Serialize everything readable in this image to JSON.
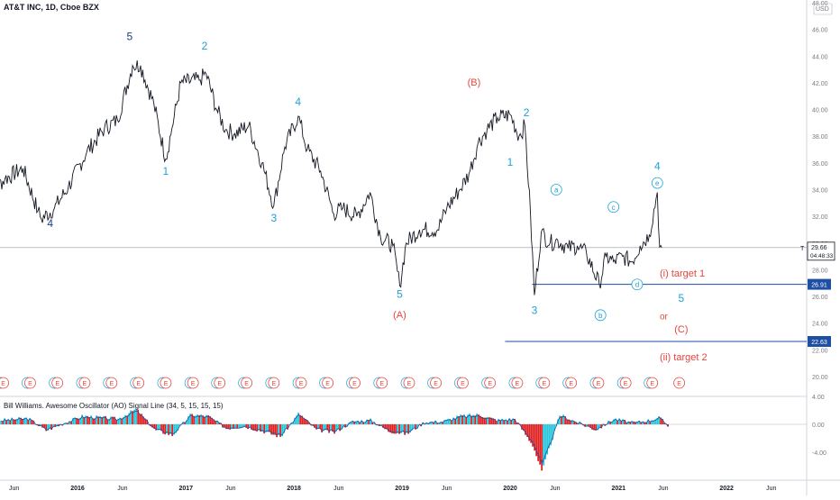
{
  "header": {
    "symbol_title": "AT&T INC, 1D, Cboe BZX",
    "currency": "USD"
  },
  "indicator": {
    "title": "Bill Williams. Awesome Oscillator (AO) Signal Line (34, 5, 15, 15, 15)"
  },
  "price_scale": {
    "ticks": [
      "48.00",
      "46.00",
      "44.00",
      "42.00",
      "40.00",
      "38.00",
      "36.00",
      "34.00",
      "32.00",
      "30.00",
      "28.00",
      "26.00",
      "24.00",
      "22.00",
      "20.00"
    ],
    "last_price": "29.66",
    "countdown": "04:48:33",
    "line_symbol": "T",
    "target1_value": "26.91",
    "target2_value": "22.63"
  },
  "ao_scale": {
    "ticks": [
      "4.00",
      "0.00",
      "-4.00"
    ]
  },
  "time_axis": {
    "labels": [
      "Jun",
      "2016",
      "Jun",
      "2017",
      "Jun",
      "2018",
      "Jun",
      "2019",
      "Jun",
      "2020",
      "Jun",
      "2021",
      "Jun",
      "2022",
      "Jun"
    ]
  },
  "annotations": {
    "target1": "(i) target 1",
    "target2": "(ii) target 2",
    "or": "or",
    "waves": [
      {
        "text": "4",
        "color": "#1f3c88"
      },
      {
        "text": "5",
        "color": "#1f3c88"
      },
      {
        "text": "1",
        "color": "#1ca3d6"
      },
      {
        "text": "2",
        "color": "#1ca3d6"
      },
      {
        "text": "3",
        "color": "#1ca3d6"
      },
      {
        "text": "4",
        "color": "#1ca3d6"
      },
      {
        "text": "5",
        "color": "#1ca3d6"
      },
      {
        "text": "(A)",
        "color": "#e8453c"
      },
      {
        "text": "(B)",
        "color": "#e8453c"
      },
      {
        "text": "1",
        "color": "#1ca3d6"
      },
      {
        "text": "2",
        "color": "#1ca3d6"
      },
      {
        "text": "3",
        "color": "#1ca3d6"
      },
      {
        "text": "4",
        "color": "#1ca3d6"
      },
      {
        "text": "5",
        "color": "#1ca3d6"
      },
      {
        "text": "(C)",
        "color": "#e8453c"
      }
    ],
    "circled": [
      "a",
      "b",
      "c",
      "d",
      "e"
    ]
  },
  "earnings_marker": "E",
  "chart_data": {
    "type": "line",
    "title": "AT&T INC, 1D, Cboe BZX",
    "ylim": [
      19,
      48
    ],
    "x_range": [
      "2015-03",
      "2022-07"
    ],
    "series": [
      {
        "values": [
          [
            "2015-03-01",
            33.5
          ],
          [
            "2015-05-01",
            34.8
          ],
          [
            "2015-07-01",
            35.6
          ],
          [
            "2015-08-20",
            32.4
          ],
          [
            "2015-09-01",
            31.8
          ],
          [
            "2015-10-15",
            32.6
          ],
          [
            "2015-12-01",
            34.2
          ],
          [
            "2016-02-01",
            36.8
          ],
          [
            "2016-04-01",
            38.6
          ],
          [
            "2016-05-15",
            39.2
          ],
          [
            "2016-07-05",
            43.3
          ],
          [
            "2016-08-01",
            43.3
          ],
          [
            "2016-09-15",
            40.4
          ],
          [
            "2016-10-25",
            36.3
          ],
          [
            "2016-11-15",
            38.6
          ],
          [
            "2016-12-15",
            42.0
          ],
          [
            "2017-02-15",
            42.2
          ],
          [
            "2017-03-10",
            42.7
          ],
          [
            "2017-04-15",
            40.0
          ],
          [
            "2017-05-15",
            38.5
          ],
          [
            "2017-06-15",
            38.2
          ],
          [
            "2017-08-01",
            38.8
          ],
          [
            "2017-09-15",
            36.0
          ],
          [
            "2017-10-25",
            32.8
          ],
          [
            "2017-12-01",
            37.2
          ],
          [
            "2018-01-15",
            39.5
          ],
          [
            "2018-02-15",
            37.0
          ],
          [
            "2018-04-01",
            35.4
          ],
          [
            "2018-05-15",
            32.2
          ],
          [
            "2018-06-15",
            32.6
          ],
          [
            "2018-08-01",
            32.0
          ],
          [
            "2018-09-15",
            33.8
          ],
          [
            "2018-10-20",
            30.5
          ],
          [
            "2018-12-01",
            29.8
          ],
          [
            "2018-12-24",
            26.8
          ],
          [
            "2019-01-15",
            30.0
          ],
          [
            "2019-03-01",
            31.0
          ],
          [
            "2019-05-01",
            31.0
          ],
          [
            "2019-06-01",
            32.6
          ],
          [
            "2019-07-15",
            34.0
          ],
          [
            "2019-08-15",
            35.2
          ],
          [
            "2019-09-15",
            37.5
          ],
          [
            "2019-10-15",
            38.5
          ],
          [
            "2019-11-20",
            39.4
          ],
          [
            "2020-01-02",
            39.6
          ],
          [
            "2020-01-31",
            38.0
          ],
          [
            "2020-02-20",
            38.8
          ],
          [
            "2020-03-10",
            32.0
          ],
          [
            "2020-03-23",
            26.1
          ],
          [
            "2020-04-15",
            30.8
          ],
          [
            "2020-05-15",
            30.0
          ],
          [
            "2020-06-10",
            30.2
          ],
          [
            "2020-07-15",
            29.6
          ],
          [
            "2020-08-15",
            29.8
          ],
          [
            "2020-09-15",
            29.2
          ],
          [
            "2020-10-28",
            26.9
          ],
          [
            "2020-11-20",
            29.0
          ],
          [
            "2020-12-15",
            28.6
          ],
          [
            "2021-01-15",
            29.0
          ],
          [
            "2021-02-15",
            28.6
          ],
          [
            "2021-03-15",
            29.8
          ],
          [
            "2021-04-15",
            30.6
          ],
          [
            "2021-05-12",
            33.8
          ],
          [
            "2021-05-20",
            29.7
          ],
          [
            "2021-05-27",
            29.66
          ]
        ]
      }
    ],
    "hlines": [
      {
        "value": 26.91,
        "label": "(i) target 1"
      },
      {
        "value": 22.63,
        "label": "(ii) target 2"
      }
    ],
    "last_price": 29.66,
    "ao_series": {
      "ylim": [
        -6.5,
        4
      ],
      "values": [
        [
          "2015-04",
          0.6
        ],
        [
          "2015-07",
          0.9
        ],
        [
          "2015-09",
          -0.9
        ],
        [
          "2015-11",
          0.2
        ],
        [
          "2016-01",
          1.2
        ],
        [
          "2016-03",
          1.0
        ],
        [
          "2016-05",
          0.8
        ],
        [
          "2016-07",
          2.2
        ],
        [
          "2016-09",
          -0.8
        ],
        [
          "2016-11",
          -1.6
        ],
        [
          "2017-01",
          1.4
        ],
        [
          "2017-03",
          1.2
        ],
        [
          "2017-05",
          -0.6
        ],
        [
          "2017-07",
          -0.3
        ],
        [
          "2017-09",
          -1.0
        ],
        [
          "2017-11",
          -1.8
        ],
        [
          "2018-01",
          1.6
        ],
        [
          "2018-03",
          -0.8
        ],
        [
          "2018-05",
          -1.2
        ],
        [
          "2018-07",
          0.4
        ],
        [
          "2018-09",
          0.6
        ],
        [
          "2018-11",
          -1.0
        ],
        [
          "2019-01",
          -1.4
        ],
        [
          "2019-03",
          0.3
        ],
        [
          "2019-05",
          0.4
        ],
        [
          "2019-07",
          1.2
        ],
        [
          "2019-09",
          1.4
        ],
        [
          "2019-11",
          0.6
        ],
        [
          "2020-01",
          0.8
        ],
        [
          "2020-03",
          -3.0
        ],
        [
          "2020-04",
          -6.8
        ],
        [
          "2020-06",
          1.4
        ],
        [
          "2020-08",
          0.2
        ],
        [
          "2020-10",
          -0.8
        ],
        [
          "2020-12",
          0.8
        ],
        [
          "2021-02",
          0.2
        ],
        [
          "2021-04",
          0.6
        ],
        [
          "2021-05",
          1.0
        ],
        [
          "2021-06",
          -0.2
        ]
      ]
    }
  }
}
